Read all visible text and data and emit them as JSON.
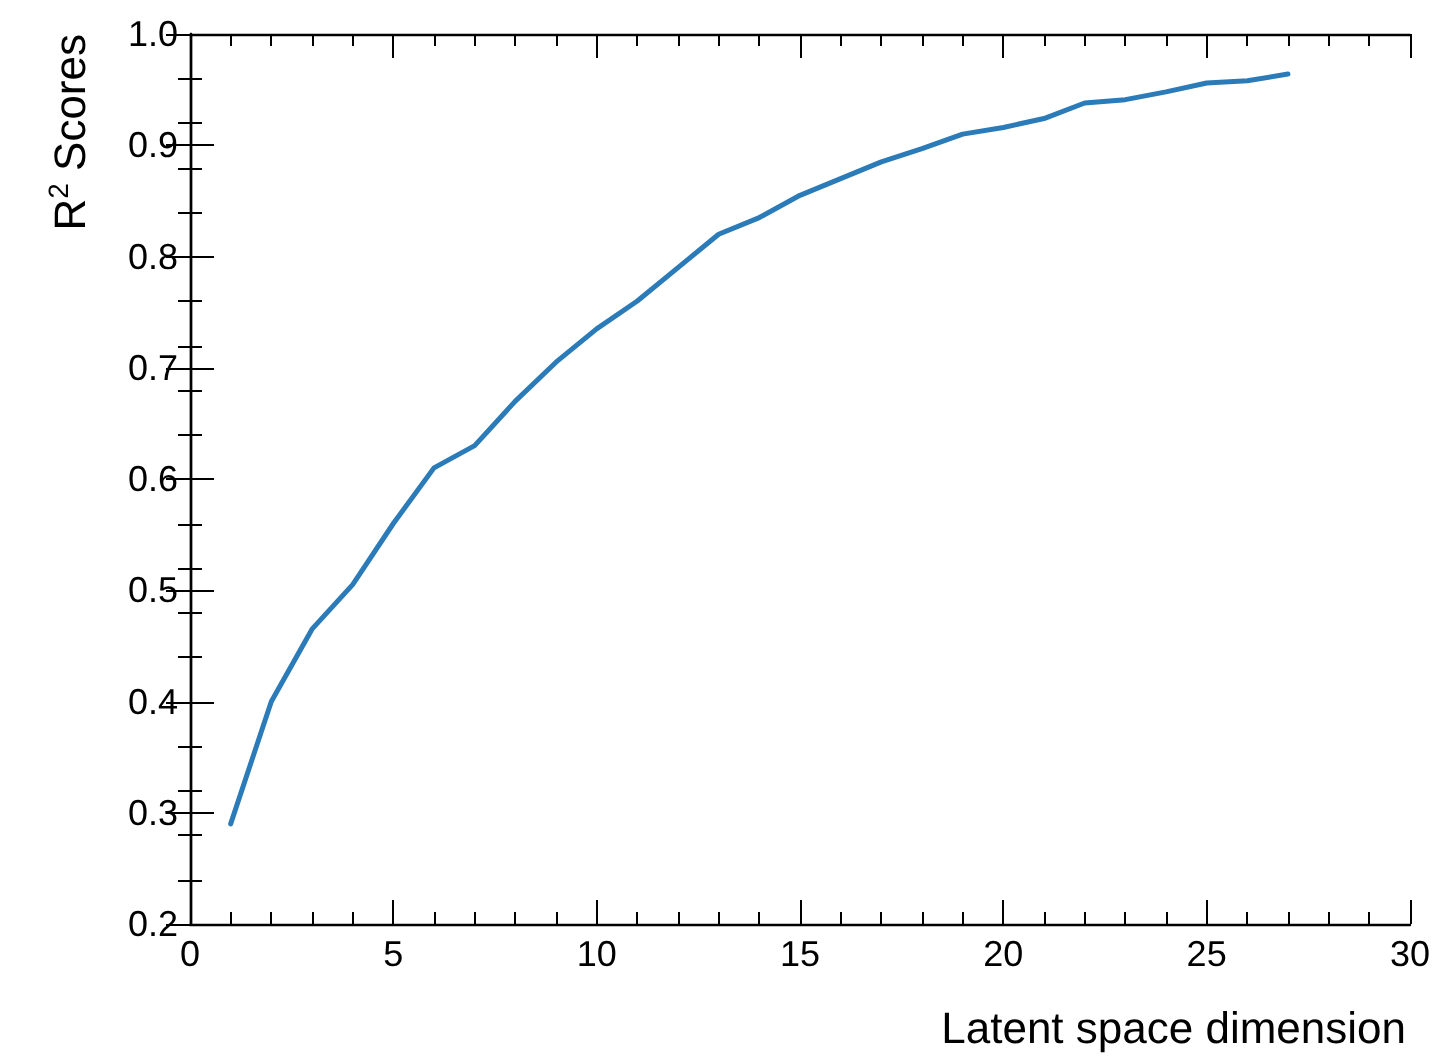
{
  "chart_data": {
    "type": "line",
    "xlabel": "Latent space dimension",
    "ylabel": "R$^{2}$ Scores",
    "x": [
      1,
      2,
      3,
      4,
      5,
      6,
      7,
      8,
      9,
      10,
      11,
      12,
      13,
      14,
      15,
      16,
      17,
      18,
      19,
      20,
      21,
      22,
      23,
      24,
      25,
      26,
      27
    ],
    "series": [
      {
        "color": "#2b7bb9",
        "values": [
          0.29,
          0.4,
          0.465,
          0.505,
          0.56,
          0.61,
          0.63,
          0.67,
          0.705,
          0.735,
          0.76,
          0.79,
          0.82,
          0.835,
          0.855,
          0.87,
          0.885,
          0.897,
          0.91,
          0.916,
          0.924,
          0.938,
          0.941,
          0.948,
          0.956,
          0.958,
          0.964
        ]
      }
    ],
    "xlim": [
      0,
      30
    ],
    "xticks": [
      0,
      5,
      10,
      15,
      20,
      25,
      30
    ],
    "ylim": [
      0.2,
      1.0
    ],
    "yticks": [
      0.2,
      0.3,
      0.4,
      0.5,
      0.6,
      0.7,
      0.8,
      0.9,
      {
        "value": 1.0,
        "label": "1.0"
      }
    ],
    "grid": false,
    "marker": "none",
    "line_style": "solid"
  }
}
